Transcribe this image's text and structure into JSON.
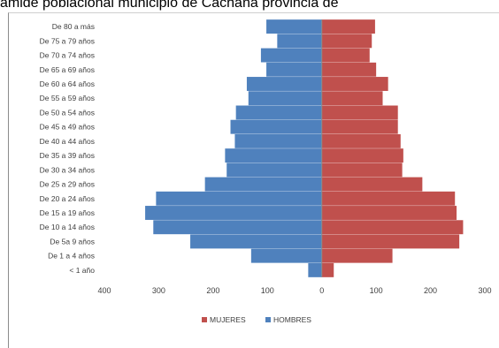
{
  "title_text": "amide poblacional municipio de Cachaña provincia de",
  "chart_data": {
    "type": "bar",
    "orientation": "horizontal",
    "categories": [
      "De 80 a más",
      "De 75 a 79 años",
      "De 70 a 74 años",
      "De 65 a 69 años",
      "De 60 a 64 años",
      "De 55 a 59 años",
      "De 50 a 54 años",
      "De 45 a 49 años",
      "De 40 a 44 años",
      "De 35 a 39 años",
      "De 30 a 34 años",
      "De 25 a 29 años",
      "De 20 a 24 años",
      "De 15 a 19 años",
      "De 10 a 14 años",
      "De 5a   9 años",
      "De 1 a 4 años",
      "< 1 año"
    ],
    "series": [
      {
        "name": "MUJERES",
        "color": "#c0504d",
        "values": [
          98,
          92,
          88,
          100,
          122,
          112,
          140,
          140,
          145,
          150,
          148,
          185,
          245,
          248,
          260,
          253,
          130,
          22
        ]
      },
      {
        "name": "HOMBRES",
        "color": "#4f81bd",
        "values": [
          -102,
          -82,
          -112,
          -102,
          -138,
          -135,
          -158,
          -168,
          -160,
          -178,
          -175,
          -215,
          -305,
          -325,
          -310,
          -242,
          -130,
          -25
        ]
      }
    ],
    "xlim": [
      -400,
      300
    ],
    "xticks": [
      -400,
      -300,
      -200,
      -100,
      0,
      100,
      200,
      300
    ],
    "xtick_labels": [
      "400",
      "300",
      "200",
      "100",
      "0",
      "100",
      "200",
      "300"
    ],
    "legend": [
      "MUJERES",
      "HOMBRES"
    ],
    "legend_position": "bottom",
    "grid": false
  }
}
